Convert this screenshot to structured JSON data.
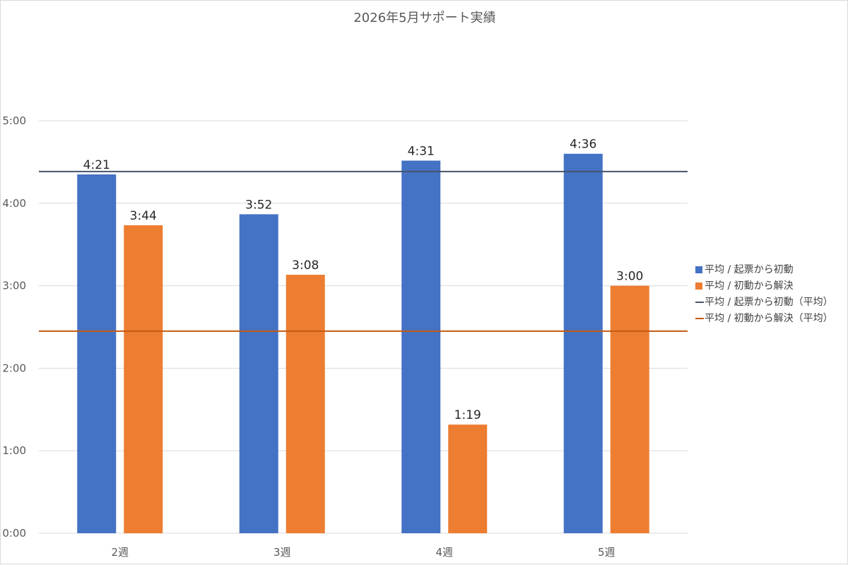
{
  "chart_data": {
    "type": "bar",
    "title": "2026年5月サポート実績",
    "categories": [
      "2週",
      "3週",
      "4週",
      "5週"
    ],
    "yticks": [
      "0:00",
      "1:00",
      "2:00",
      "3:00",
      "4:00",
      "5:00"
    ],
    "ylim": [
      0,
      5
    ],
    "y_unit": "hours (h:mm)",
    "grid": true,
    "legend_position": "right",
    "series": [
      {
        "name": "平均 / 起票から初動",
        "color": "#4472c4",
        "values": [
          4.35,
          3.8667,
          4.5167,
          4.6
        ],
        "labels": [
          "4:21",
          "3:52",
          "4:31",
          "4:36"
        ]
      },
      {
        "name": "平均 / 初動から解決",
        "color": "#ed7d31",
        "values": [
          3.7333,
          3.1333,
          1.3167,
          3.0
        ],
        "labels": [
          "3:44",
          "3:08",
          "1:19",
          "3:00"
        ]
      }
    ],
    "reference_lines": [
      {
        "name": "平均 / 起票から初動（平均）",
        "value": 4.385,
        "color": "#44546a"
      },
      {
        "name": "平均 / 初動から解決（平均）",
        "value": 2.45,
        "color": "#c55a11"
      }
    ]
  }
}
